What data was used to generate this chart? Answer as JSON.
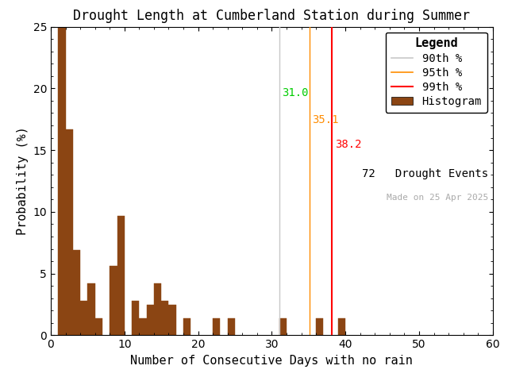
{
  "title": "Drought Length at Cumberland Station during Summer",
  "xlabel": "Number of Consecutive Days with no rain",
  "ylabel": "Probability (%)",
  "bar_color": "#8B4513",
  "bar_edge_color": "#8B4513",
  "background_color": "#ffffff",
  "xlim": [
    0,
    60
  ],
  "ylim": [
    0,
    25
  ],
  "xticks": [
    0,
    10,
    20,
    30,
    40,
    50,
    60
  ],
  "yticks": [
    0,
    5,
    10,
    15,
    20,
    25
  ],
  "bin_width": 1,
  "bar_data": [
    [
      1,
      25.0
    ],
    [
      2,
      16.7
    ],
    [
      3,
      6.9
    ],
    [
      4,
      2.8
    ],
    [
      5,
      4.2
    ],
    [
      6,
      1.4
    ],
    [
      7,
      0.0
    ],
    [
      8,
      5.6
    ],
    [
      9,
      9.7
    ],
    [
      10,
      0.0
    ],
    [
      11,
      2.8
    ],
    [
      12,
      1.4
    ],
    [
      13,
      2.5
    ],
    [
      14,
      4.2
    ],
    [
      15,
      2.8
    ],
    [
      16,
      2.5
    ],
    [
      17,
      0.0
    ],
    [
      18,
      1.4
    ],
    [
      19,
      0.0
    ],
    [
      20,
      0.0
    ],
    [
      21,
      0.0
    ],
    [
      22,
      1.4
    ],
    [
      23,
      0.0
    ],
    [
      24,
      1.4
    ],
    [
      25,
      0.0
    ],
    [
      26,
      0.0
    ],
    [
      27,
      0.0
    ],
    [
      28,
      0.0
    ],
    [
      29,
      0.0
    ],
    [
      30,
      0.0
    ],
    [
      31,
      1.4
    ],
    [
      32,
      0.0
    ],
    [
      33,
      0.0
    ],
    [
      34,
      0.0
    ],
    [
      35,
      0.0
    ],
    [
      36,
      1.4
    ],
    [
      37,
      0.0
    ],
    [
      38,
      0.0
    ],
    [
      39,
      1.4
    ]
  ],
  "pct90": 31.0,
  "pct95": 35.1,
  "pct99": 38.2,
  "pct90_color": "#c8c8c8",
  "pct95_color": "#ff8c00",
  "pct99_color": "#ff0000",
  "pct90_label_color": "#00cc00",
  "n_events": 72,
  "made_on": "Made on 25 Apr 2025",
  "legend_title": "Legend",
  "title_fontsize": 12,
  "axis_label_fontsize": 11,
  "tick_fontsize": 10,
  "legend_fontsize": 10
}
